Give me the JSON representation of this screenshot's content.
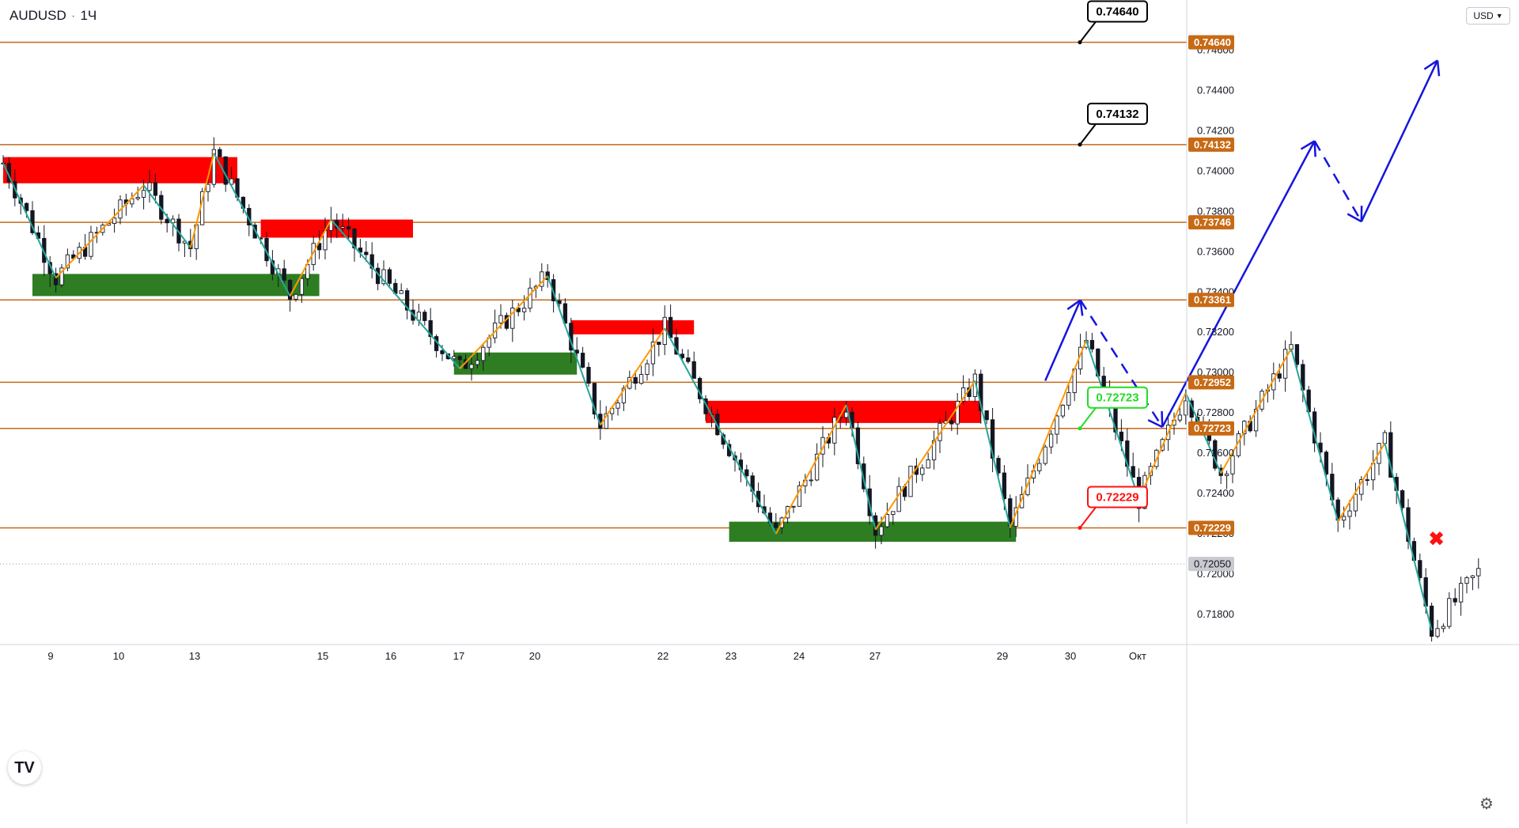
{
  "header": {
    "symbol": "AUDUSD",
    "interval": "1Ч",
    "currency_button": "USD"
  },
  "footer": {
    "logo_text": "TV",
    "settings_icon": "gear-icon"
  },
  "colors": {
    "level_line": "#c46a1a",
    "level_label_bg": "#c86a14",
    "candle": "#131722",
    "zigzag_up": "#ff9800",
    "zigzag_down": "#26a69a",
    "forecast": "#1515e0",
    "supply_zone": "#ff0000",
    "demand_zone": "#2e7d22",
    "target_green": "#22dd22",
    "target_red": "#ff1111",
    "target_black": "#000000"
  },
  "chart_data": {
    "type": "candlestick",
    "instrument": "AUDUSD",
    "timeframe": "1H",
    "ylim": [
      0.7165,
      0.7485
    ],
    "x_tick_labels": [
      "9",
      "10",
      "13",
      "15",
      "16",
      "17",
      "20",
      "22",
      "23",
      "24",
      "27",
      "29",
      "30",
      "Окт"
    ],
    "y_tick_labels": [
      "0.74600",
      "0.74400",
      "0.74200",
      "0.74000",
      "0.73800",
      "0.73600",
      "0.73400",
      "0.73200",
      "0.73000",
      "0.72800",
      "0.72600",
      "0.72400",
      "0.72200",
      "0.72000",
      "0.71800"
    ],
    "current_price": "0.72050",
    "levels": [
      "0.74640",
      "0.74132",
      "0.73746",
      "0.73361",
      "0.72952",
      "0.72723",
      "0.72229"
    ],
    "targets": [
      {
        "value": "0.74640",
        "style": "black"
      },
      {
        "value": "0.74132",
        "style": "black"
      },
      {
        "value": "0.72723",
        "style": "green"
      },
      {
        "value": "0.72229",
        "style": "red"
      }
    ],
    "supply_zones": [
      {
        "from_bar": 0,
        "to_bar": 40,
        "low": 0.7394,
        "high": 0.7407
      },
      {
        "from_bar": 44,
        "to_bar": 70,
        "low": 0.7367,
        "high": 0.7376
      },
      {
        "from_bar": 97,
        "to_bar": 118,
        "low": 0.7319,
        "high": 0.7326
      },
      {
        "from_bar": 120,
        "to_bar": 167,
        "low": 0.7275,
        "high": 0.7286
      }
    ],
    "demand_zones": [
      {
        "from_bar": 5,
        "to_bar": 54,
        "low": 0.7338,
        "high": 0.7349
      },
      {
        "from_bar": 77,
        "to_bar": 98,
        "low": 0.7299,
        "high": 0.731
      },
      {
        "from_bar": 124,
        "to_bar": 173,
        "low": 0.7216,
        "high": 0.7226
      }
    ],
    "zigzag": [
      {
        "bar": 0,
        "price": 0.7404
      },
      {
        "bar": 9,
        "price": 0.7347
      },
      {
        "bar": 24,
        "price": 0.7393
      },
      {
        "bar": 32,
        "price": 0.7362
      },
      {
        "bar": 36,
        "price": 0.7409
      },
      {
        "bar": 49,
        "price": 0.7338
      },
      {
        "bar": 56,
        "price": 0.7376
      },
      {
        "bar": 78,
        "price": 0.7302
      },
      {
        "bar": 93,
        "price": 0.7348
      },
      {
        "bar": 102,
        "price": 0.7274
      },
      {
        "bar": 113,
        "price": 0.7322
      },
      {
        "bar": 132,
        "price": 0.722
      },
      {
        "bar": 144,
        "price": 0.7284
      },
      {
        "bar": 149,
        "price": 0.7222
      },
      {
        "bar": 166,
        "price": 0.7296
      },
      {
        "bar": 172,
        "price": 0.7223
      },
      {
        "bar": 185,
        "price": 0.7316
      },
      {
        "bar": 194,
        "price": 0.7237
      },
      {
        "bar": 202,
        "price": 0.729
      },
      {
        "bar": 208,
        "price": 0.725
      },
      {
        "bar": 220,
        "price": 0.7312
      },
      {
        "bar": 228,
        "price": 0.7226
      },
      {
        "bar": 236,
        "price": 0.7265
      },
      {
        "bar": 244,
        "price": 0.7172
      }
    ],
    "forecast_path": [
      {
        "bar": 178,
        "price": 0.7296
      },
      {
        "bar": 184,
        "price": 0.7336
      },
      {
        "bar": 198,
        "price": 0.7273
      },
      {
        "bar": 224,
        "price": 0.7415
      },
      {
        "bar": 232,
        "price": 0.7375
      },
      {
        "bar": 245,
        "price": 0.7455
      }
    ],
    "invalidation_marker": {
      "bar": 244,
      "price": 0.7219
    },
    "bar_count": 253
  }
}
